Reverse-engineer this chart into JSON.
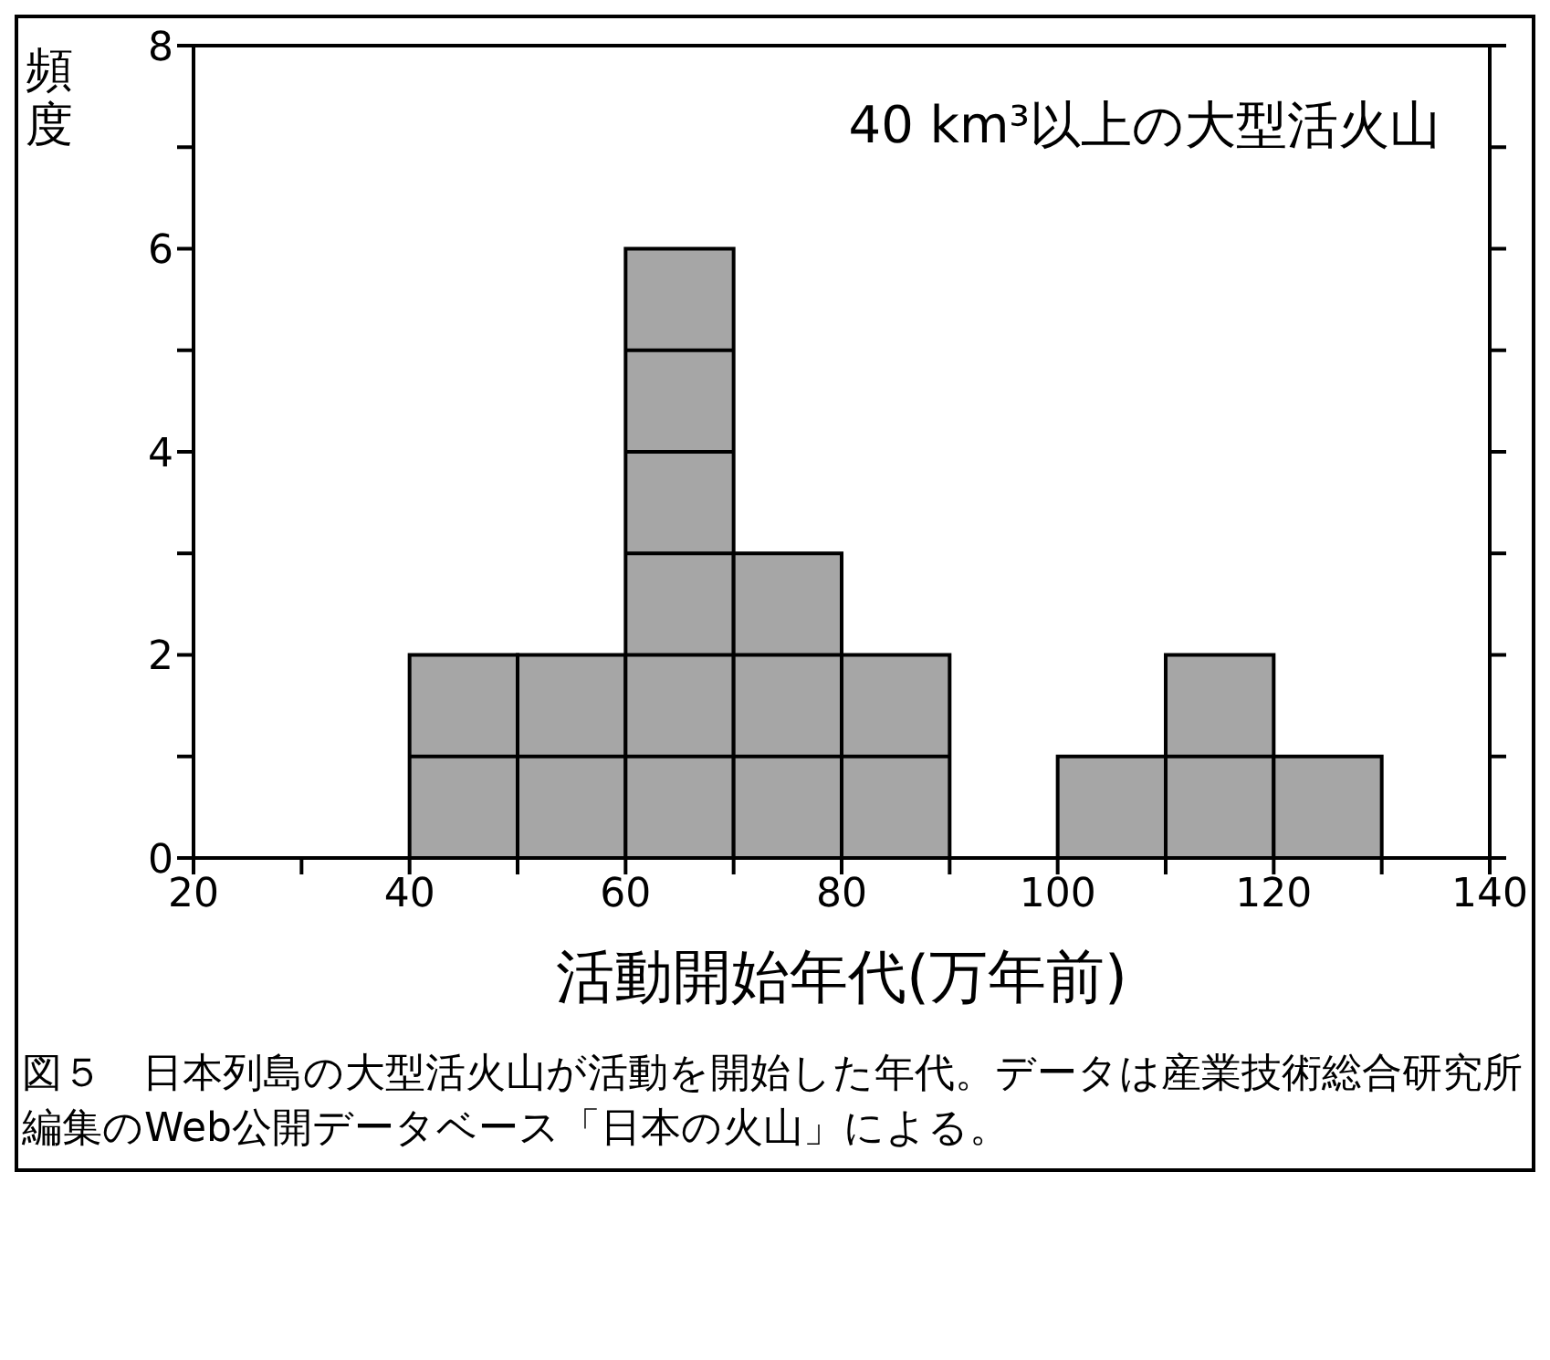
{
  "chart_data": {
    "type": "histogram",
    "title": "40 km³以上の大型活火山",
    "xlabel": "活動開始年代(万年前)",
    "ylabel": "頻度",
    "bins": [
      40,
      50,
      60,
      70,
      80,
      90,
      100,
      110,
      120,
      130
    ],
    "values": [
      2,
      2,
      6,
      3,
      2,
      0,
      1,
      2,
      1
    ],
    "color": "#a6a6a6",
    "xlim": [
      20,
      140
    ],
    "xticks": [
      20,
      {
        "value": 30,
        "label": null
      },
      40,
      {
        "value": 50,
        "label": null
      },
      60,
      {
        "value": 70,
        "label": null
      },
      80,
      {
        "value": 90,
        "label": null
      },
      100,
      {
        "value": 110,
        "label": null
      },
      120,
      {
        "value": 130,
        "label": null
      },
      140
    ],
    "ylim": [
      0,
      8
    ],
    "yticks": [
      0,
      {
        "value": 1,
        "label": null
      },
      2,
      {
        "value": 3,
        "label": null
      },
      4,
      {
        "value": 5,
        "label": null
      },
      6,
      {
        "value": 7,
        "label": null
      },
      8
    ],
    "annotations": [
      "図５　日本列島の大型活火山が活動を開始した年代。データは産業技術総合研究所編集のWeb公開データベース「日本の火山」による。"
    ]
  }
}
